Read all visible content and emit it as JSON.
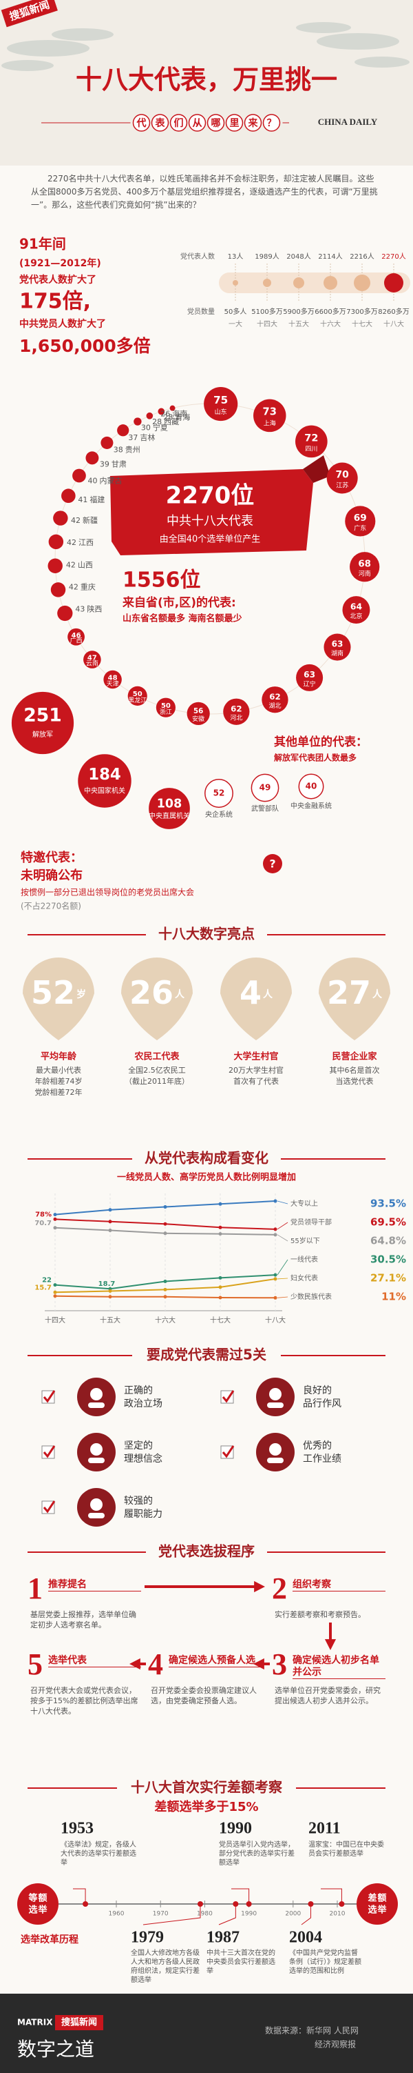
{
  "header": {
    "logo": "搜狐新闻",
    "title": "十八大代表，万里挑一",
    "subtitle": "代表们从哪里来？",
    "partner": "CHINA DAILY"
  },
  "intro": "2270名中共十八大代表名单，以姓氏笔画排名并不会标注职务，却注定被人民瞩目。这些从全国8000多万名党员、400多万个基层党组织推荐提名，逐级遴选产生的代表，可谓“万里挑一”。那么，这些代表们究竟如何“挑”出来的？",
  "growth": {
    "period": "91年间",
    "years": "(1921—2012年)",
    "line1": "党代表人数扩大了",
    "factor1": "175倍,",
    "line2": "中共党员人数扩大了",
    "factor2": "1,650,000多倍",
    "delegates_label": "党代表人数",
    "members_label": "党员数量",
    "delegates": [
      "13人",
      "1989人",
      "2048人",
      "2114人",
      "2216人",
      "2270人"
    ],
    "members": [
      "50多人",
      "5100多万",
      "5900多万",
      "6600多万",
      "7300多万",
      "8260多万"
    ],
    "congresses": [
      "一大",
      "十四大",
      "十五大",
      "十六大",
      "十七大",
      "十八大"
    ]
  },
  "bubbles": {
    "center": {
      "number": "2270位",
      "line1": "中共十八大代表",
      "line2": "由全国40个选举单位产生"
    },
    "provinces_title": {
      "number": "1556位",
      "line1": "来自省(市,区)的代表:",
      "line2": "山东省名额最多 海南名额最少"
    },
    "provinces": [
      {
        "name": "山东",
        "count": 75
      },
      {
        "name": "上海",
        "count": 73
      },
      {
        "name": "四川",
        "count": 72
      },
      {
        "name": "江苏",
        "count": 70
      },
      {
        "name": "广东",
        "count": 69
      },
      {
        "name": "河南",
        "count": 68
      },
      {
        "name": "北京",
        "count": 64
      },
      {
        "name": "湖南",
        "count": 63
      },
      {
        "name": "辽宁",
        "count": 63
      },
      {
        "name": "湖北",
        "count": 62
      },
      {
        "name": "河北",
        "count": 62
      },
      {
        "name": "安徽",
        "count": 56
      },
      {
        "name": "浙江",
        "count": 50
      },
      {
        "name": "黑龙江",
        "count": 50
      },
      {
        "name": "天津",
        "count": 48
      },
      {
        "name": "云南",
        "count": 47
      },
      {
        "name": "广西",
        "count": 46
      },
      {
        "name": "陕西",
        "count": 43
      },
      {
        "name": "重庆",
        "count": 42
      },
      {
        "name": "山西",
        "count": 42
      },
      {
        "name": "江西",
        "count": 42
      },
      {
        "name": "新疆",
        "count": 42
      },
      {
        "name": "福建",
        "count": 41
      },
      {
        "name": "内蒙古",
        "count": 40
      },
      {
        "name": "甘肃",
        "count": 39
      },
      {
        "name": "贵州",
        "count": 38
      },
      {
        "name": "吉林",
        "count": 37
      },
      {
        "name": "宁夏",
        "count": 30
      },
      {
        "name": "西藏",
        "count": 28
      },
      {
        "name": "青海",
        "count": 28
      },
      {
        "name": "海南",
        "count": 26
      }
    ],
    "others_title": "其他单位的代表：",
    "others_note": "解放军代表团人数最多",
    "others": [
      {
        "name": "解放军",
        "count": 251
      },
      {
        "name": "中央国家机关",
        "count": 184
      },
      {
        "name": "中央直属机关",
        "count": 108
      },
      {
        "name": "央企系统",
        "count": 52
      },
      {
        "name": "武警部队",
        "count": 49
      },
      {
        "name": "中央金融系统",
        "count": 40
      }
    ]
  },
  "special": {
    "title": "特邀代表：",
    "status": "未明确公布",
    "note": "按惯例一部分已退出领导岗位的老党员出席大会",
    "aside": "(不占2270名额)",
    "mark": "?"
  },
  "highlights": {
    "title": "十八大数字亮点",
    "items": [
      {
        "number": "52",
        "unit": "岁",
        "label": "平均年龄",
        "desc": [
          "最大最小代表",
          "年龄相差74岁",
          "党龄相差72年"
        ]
      },
      {
        "number": "26",
        "unit": "人",
        "label": "农民工代表",
        "desc": [
          "全国2.5亿农民工",
          "（截止2011年底）"
        ]
      },
      {
        "number": "4",
        "unit": "人",
        "label": "大学生村官",
        "desc": [
          "20万大学生村官",
          "首次有了代表"
        ]
      },
      {
        "number": "27",
        "unit": "人",
        "label": "民营企业家",
        "desc": [
          "其中6名是首次",
          "当选党代表"
        ]
      }
    ]
  },
  "changes": {
    "title": "从党代表构成看变化",
    "subtitle": "一线党员人数、高学历党员人数比例明显增加",
    "categories": [
      "十四大",
      "十五大",
      "十六大",
      "十七大",
      "十八大"
    ],
    "ylim": [
      0,
      100
    ],
    "series": [
      {
        "name": "大专以上",
        "color": "#3a7bbf",
        "values": [
          82,
          86,
          88.5,
          91,
          93.5
        ],
        "value_labels": [
          null,
          null,
          null,
          null,
          "93.5%"
        ]
      },
      {
        "name": "党员领导干部",
        "color": "#c8161d",
        "values": [
          78,
          76,
          74,
          71,
          69.5
        ],
        "value_labels": [
          "78%",
          null,
          null,
          null,
          "69.5%"
        ]
      },
      {
        "name": "55岁以下",
        "color": "#9a9a9a",
        "values": [
          70.7,
          68.5,
          66,
          65.5,
          64.8
        ],
        "value_labels": [
          "70.7",
          null,
          null,
          null,
          "64.8%"
        ]
      },
      {
        "name": "一线代表",
        "color": "#2f8f6f",
        "values": [
          22,
          18.7,
          25,
          28,
          30.5
        ],
        "value_labels": [
          "22",
          "18.7",
          null,
          null,
          "30.5%"
        ]
      },
      {
        "name": "妇女代表",
        "color": "#d9a21b",
        "values": [
          15.7,
          16.8,
          18,
          20.1,
          27.1
        ],
        "value_labels": [
          "15.7",
          null,
          null,
          null,
          "27.1%"
        ]
      },
      {
        "name": "少数民族代表",
        "color": "#e06b2a",
        "values": [
          12.5,
          11.9,
          11.9,
          11.2,
          11
        ],
        "value_labels": [
          null,
          null,
          null,
          null,
          "11%"
        ]
      }
    ]
  },
  "gates": {
    "title": "要成党代表需过5关",
    "items": [
      [
        "正确的",
        "政治立场"
      ],
      [
        "良好的",
        "品行作风"
      ],
      [
        "坚定的",
        "理想信念"
      ],
      [
        "优秀的",
        "工作业绩"
      ],
      [
        "较强的",
        "履职能力"
      ]
    ]
  },
  "process": {
    "title": "党代表选拔程序",
    "steps": [
      {
        "num": "1",
        "title": "推荐提名",
        "desc": "基层党委上报推荐，选举单位确定初步人选考察名单。"
      },
      {
        "num": "2",
        "title": "组织考察",
        "desc": "实行差额考察和考察预告。"
      },
      {
        "num": "3",
        "title": "确定候选人初步名单并公示",
        "desc": "选举单位召开党委常委会，研究提出候选人初步人选并公示。"
      },
      {
        "num": "4",
        "title": "确定候选人预备人选",
        "desc": "召开党委全委会投票确定建议人选，由党委确定预备人选。"
      },
      {
        "num": "5",
        "title": "选举代表",
        "desc": "召开党代表大会或党代表会议，按多于15%的差额比例选举出席十八大代表。"
      }
    ]
  },
  "reform": {
    "title": "十八大首次实行差额考察",
    "subtitle": "差额选举多于15%",
    "start": "等额选举",
    "end": "差额选举",
    "caption": "选举改革历程",
    "ticks": [
      1960,
      1970,
      1980,
      1990,
      2000,
      2010
    ],
    "events": [
      {
        "year": 1953,
        "text": "《选举法》规定，各级人大代表的选举实行差额选举"
      },
      {
        "year": 1990,
        "text": "党员选举引入党内选举，部分党代表的选举实行差额选举"
      },
      {
        "year": 2011,
        "text": "温家宝：中国已在中央委员会实行差额选举"
      },
      {
        "year": 1979,
        "text": "全国人大修改地方各级人大和地方各级人民政府组织法，规定实行差额选举"
      },
      {
        "year": 1987,
        "text": "中共十三大首次在党的中央委员会实行差额选举"
      },
      {
        "year": 2004,
        "text": "《中国共产党党内监督条例（试行）》规定差额选举的范围和比例"
      }
    ]
  },
  "footer": {
    "brand": "MATRIX",
    "logo": "搜狐新闻",
    "name": "数字之道",
    "source": "数据来源：新华网 人民网",
    "source2": "经济观察报"
  }
}
